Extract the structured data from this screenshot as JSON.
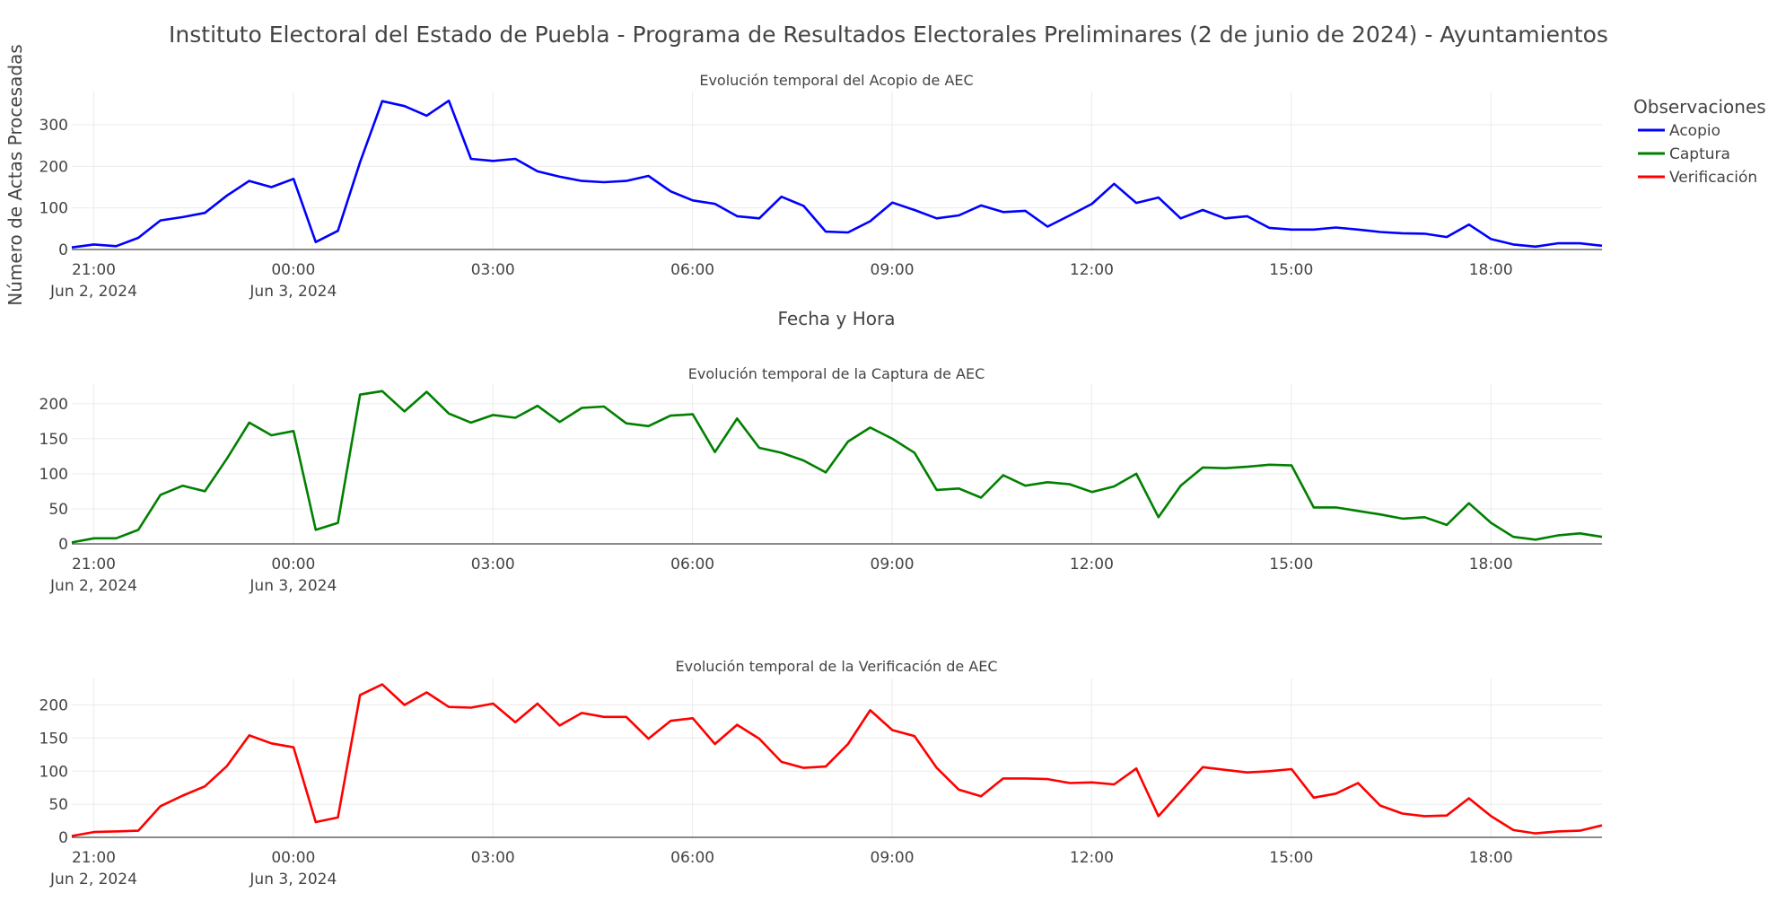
{
  "chart_data": {
    "type": "line",
    "title": "Instituto Electoral del Estado de Puebla - Programa de Resultados Electorales Preliminares (2 de junio de 2024) - Ayuntamientos",
    "ylabel": "Número de Actas Procesadas",
    "xlabel": "Fecha y Hora",
    "legend": {
      "title": "Observaciones",
      "position": "top-right"
    },
    "x_ticks": [
      {
        "time": "21:00",
        "date": "Jun 2, 2024",
        "h": 0
      },
      {
        "time": "00:00",
        "date": "Jun 3, 2024",
        "h": 3
      },
      {
        "time": "03:00",
        "date": "",
        "h": 6
      },
      {
        "time": "06:00",
        "date": "",
        "h": 9
      },
      {
        "time": "09:00",
        "date": "",
        "h": 12
      },
      {
        "time": "12:00",
        "date": "",
        "h": 15
      },
      {
        "time": "15:00",
        "date": "",
        "h": 18
      },
      {
        "time": "18:00",
        "date": "",
        "h": 21
      }
    ],
    "x_start": "2024-06-02 20:40",
    "interval_minutes": 20,
    "xlim_hours": [
      -0.33,
      22.67
    ],
    "panels": [
      {
        "subtitle": "Evolución temporal del Acopio de AEC",
        "name": "Acopio",
        "color": "#0000ff",
        "ylim": [
          0,
          380
        ],
        "yticks": [
          0,
          100,
          200,
          300
        ],
        "values": [
          5,
          12,
          8,
          28,
          70,
          78,
          88,
          130,
          165,
          150,
          170,
          18,
          45,
          210,
          357,
          345,
          322,
          358,
          218,
          213,
          218,
          188,
          175,
          165,
          162,
          165,
          177,
          140,
          118,
          110,
          80,
          75,
          127,
          105,
          43,
          41,
          68,
          113,
          95,
          75,
          82,
          106,
          90,
          93,
          55,
          82,
          110,
          158,
          112,
          125,
          75,
          95,
          75,
          80,
          52,
          48,
          48,
          53,
          48,
          42,
          39,
          38,
          30,
          60,
          25,
          12,
          7,
          15,
          15,
          9
        ]
      },
      {
        "subtitle": "Evolución temporal de la Captura de AEC",
        "name": "Captura",
        "color": "#008000",
        "ylim": [
          0,
          228
        ],
        "yticks": [
          0,
          50,
          100,
          150,
          200
        ],
        "values": [
          2,
          8,
          8,
          20,
          70,
          83,
          75,
          122,
          173,
          155,
          161,
          20,
          30,
          213,
          218,
          189,
          217,
          186,
          173,
          184,
          180,
          197,
          174,
          194,
          196,
          172,
          168,
          183,
          185,
          131,
          179,
          137,
          130,
          119,
          102,
          146,
          166,
          150,
          130,
          77,
          79,
          66,
          98,
          83,
          88,
          85,
          74,
          82,
          100,
          38,
          83,
          109,
          108,
          110,
          113,
          112,
          52,
          52,
          47,
          42,
          36,
          38,
          27,
          58,
          30,
          10,
          6,
          12,
          15,
          10
        ]
      },
      {
        "subtitle": "Evolución temporal de la Verificación de AEC",
        "name": "Verificación",
        "color": "#ff0000",
        "ylim": [
          0,
          240
        ],
        "yticks": [
          0,
          50,
          100,
          150,
          200
        ],
        "values": [
          2,
          8,
          9,
          10,
          47,
          63,
          77,
          108,
          154,
          142,
          136,
          23,
          30,
          215,
          231,
          200,
          219,
          197,
          196,
          202,
          174,
          202,
          169,
          188,
          182,
          182,
          149,
          176,
          180,
          141,
          170,
          149,
          114,
          105,
          107,
          141,
          192,
          162,
          153,
          105,
          72,
          62,
          89,
          89,
          88,
          82,
          83,
          80,
          104,
          32,
          69,
          106,
          102,
          98,
          100,
          103,
          60,
          66,
          82,
          48,
          36,
          32,
          33,
          59,
          32,
          11,
          6,
          9,
          10,
          18
        ]
      }
    ]
  }
}
